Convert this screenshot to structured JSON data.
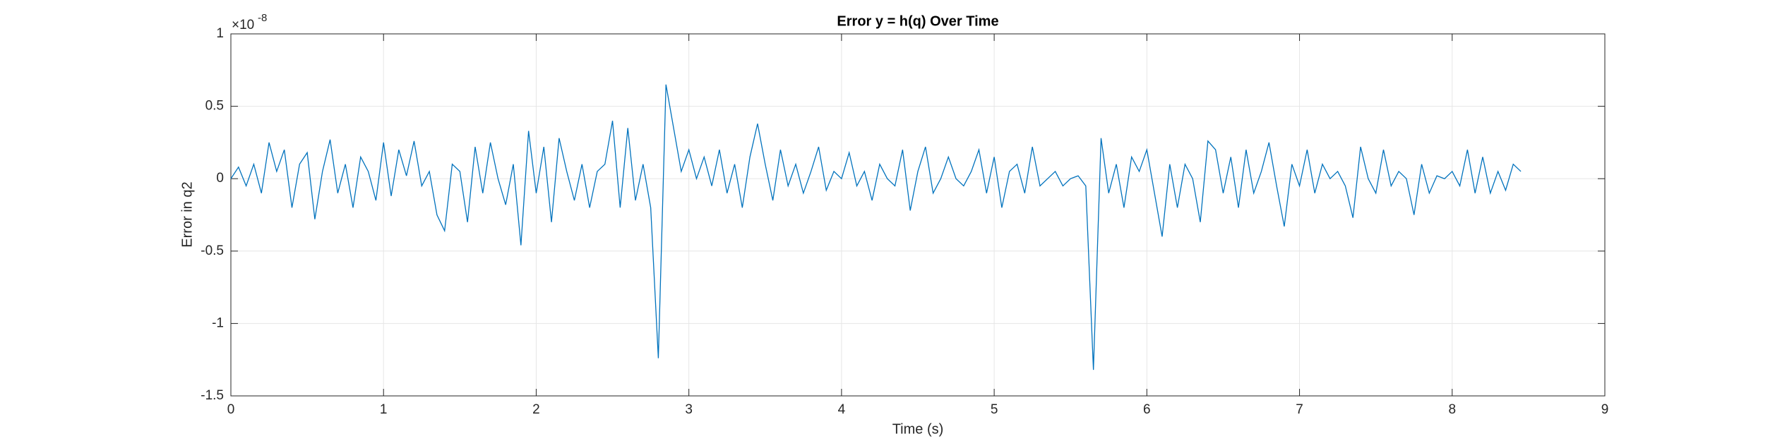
{
  "chart_data": {
    "type": "line",
    "title": "Error y = h(q) Over Time",
    "x_label": "Time (s)",
    "y_label": "Error in q2",
    "y_multiplier": {
      "base": "×10",
      "exponent": "-8"
    },
    "x": [
      0,
      0.05,
      0.1,
      0.15,
      0.2,
      0.25,
      0.3,
      0.35,
      0.4,
      0.45,
      0.5,
      0.55,
      0.6,
      0.65,
      0.7,
      0.75,
      0.8,
      0.85,
      0.9,
      0.95,
      1,
      1.05,
      1.1,
      1.15,
      1.2,
      1.25,
      1.3,
      1.35,
      1.4,
      1.45,
      1.5,
      1.55,
      1.6,
      1.65,
      1.7,
      1.75,
      1.8,
      1.85,
      1.9,
      1.95,
      2,
      2.05,
      2.1,
      2.15,
      2.2,
      2.25,
      2.3,
      2.35,
      2.4,
      2.45,
      2.5,
      2.55,
      2.6,
      2.65,
      2.7,
      2.75,
      2.8,
      2.85,
      2.9,
      2.95,
      3,
      3.05,
      3.1,
      3.15,
      3.2,
      3.25,
      3.3,
      3.35,
      3.4,
      3.45,
      3.5,
      3.55,
      3.6,
      3.65,
      3.7,
      3.75,
      3.8,
      3.85,
      3.9,
      3.95,
      4,
      4.05,
      4.1,
      4.15,
      4.2,
      4.25,
      4.3,
      4.35,
      4.4,
      4.45,
      4.5,
      4.55,
      4.6,
      4.65,
      4.7,
      4.75,
      4.8,
      4.85,
      4.9,
      4.95,
      5,
      5.05,
      5.1,
      5.15,
      5.2,
      5.25,
      5.3,
      5.35,
      5.4,
      5.45,
      5.5,
      5.55,
      5.6,
      5.65,
      5.7,
      5.75,
      5.8,
      5.85,
      5.9,
      5.95,
      6,
      6.05,
      6.1,
      6.15,
      6.2,
      6.25,
      6.3,
      6.35,
      6.4,
      6.45,
      6.5,
      6.55,
      6.6,
      6.65,
      6.7,
      6.75,
      6.8,
      6.85,
      6.9,
      6.95,
      7,
      7.05,
      7.1,
      7.15,
      7.2,
      7.25,
      7.3,
      7.35,
      7.4,
      7.45,
      7.5,
      7.55,
      7.6,
      7.65,
      7.7,
      7.75,
      7.8,
      7.85,
      7.9,
      7.95,
      8,
      8.05,
      8.1,
      8.15,
      8.2,
      8.25,
      8.3,
      8.35,
      8.4,
      8.45
    ],
    "series": [
      {
        "color": "#0072BD",
        "values": [
          0,
          0.08,
          -0.05,
          0.1,
          -0.1,
          0.25,
          0.05,
          0.2,
          -0.2,
          0.1,
          0.18,
          -0.28,
          0.05,
          0.27,
          -0.1,
          0.1,
          -0.2,
          0.15,
          0.05,
          -0.15,
          0.25,
          -0.12,
          0.2,
          0.02,
          0.26,
          -0.05,
          0.05,
          -0.25,
          -0.36,
          0.1,
          0.05,
          -0.3,
          0.22,
          -0.1,
          0.25,
          0,
          -0.18,
          0.1,
          -0.46,
          0.33,
          -0.1,
          0.22,
          -0.3,
          0.28,
          0.05,
          -0.15,
          0.1,
          -0.2,
          0.05,
          0.1,
          0.4,
          -0.2,
          0.35,
          -0.15,
          0.1,
          -0.2,
          -1.24,
          0.65,
          0.35,
          0.05,
          0.2,
          0,
          0.15,
          -0.05,
          0.2,
          -0.1,
          0.1,
          -0.2,
          0.15,
          0.38,
          0.1,
          -0.15,
          0.2,
          -0.05,
          0.1,
          -0.1,
          0.05,
          0.22,
          -0.08,
          0.05,
          0,
          0.18,
          -0.05,
          0.05,
          -0.15,
          0.1,
          0,
          -0.05,
          0.2,
          -0.22,
          0.05,
          0.22,
          -0.1,
          0,
          0.15,
          0,
          -0.05,
          0.05,
          0.2,
          -0.1,
          0.15,
          -0.2,
          0.05,
          0.1,
          -0.1,
          0.22,
          -0.05,
          0,
          0.05,
          -0.05,
          0,
          0.02,
          -0.05,
          -1.32,
          0.28,
          -0.1,
          0.1,
          -0.2,
          0.15,
          0.05,
          0.2,
          -0.1,
          -0.4,
          0.1,
          -0.2,
          0.1,
          0,
          -0.3,
          0.26,
          0.2,
          -0.1,
          0.15,
          -0.2,
          0.2,
          -0.1,
          0.05,
          0.25,
          -0.05,
          -0.33,
          0.1,
          -0.05,
          0.2,
          -0.1,
          0.1,
          0,
          0.05,
          -0.05,
          -0.27,
          0.22,
          0,
          -0.1,
          0.2,
          -0.05,
          0.05,
          0,
          -0.25,
          0.1,
          -0.1,
          0.02,
          0,
          0.05,
          -0.05,
          0.2,
          -0.1,
          0.15,
          -0.1,
          0.05,
          -0.08,
          0.1,
          0.05
        ]
      }
    ],
    "xlim": [
      0,
      9
    ],
    "xticks": [
      0,
      1,
      2,
      3,
      4,
      5,
      6,
      7,
      8,
      9
    ],
    "ylim": [
      -1.5,
      1
    ],
    "yticks": [
      -1.5,
      -1,
      -0.5,
      0,
      0.5,
      1
    ],
    "grid": true
  }
}
